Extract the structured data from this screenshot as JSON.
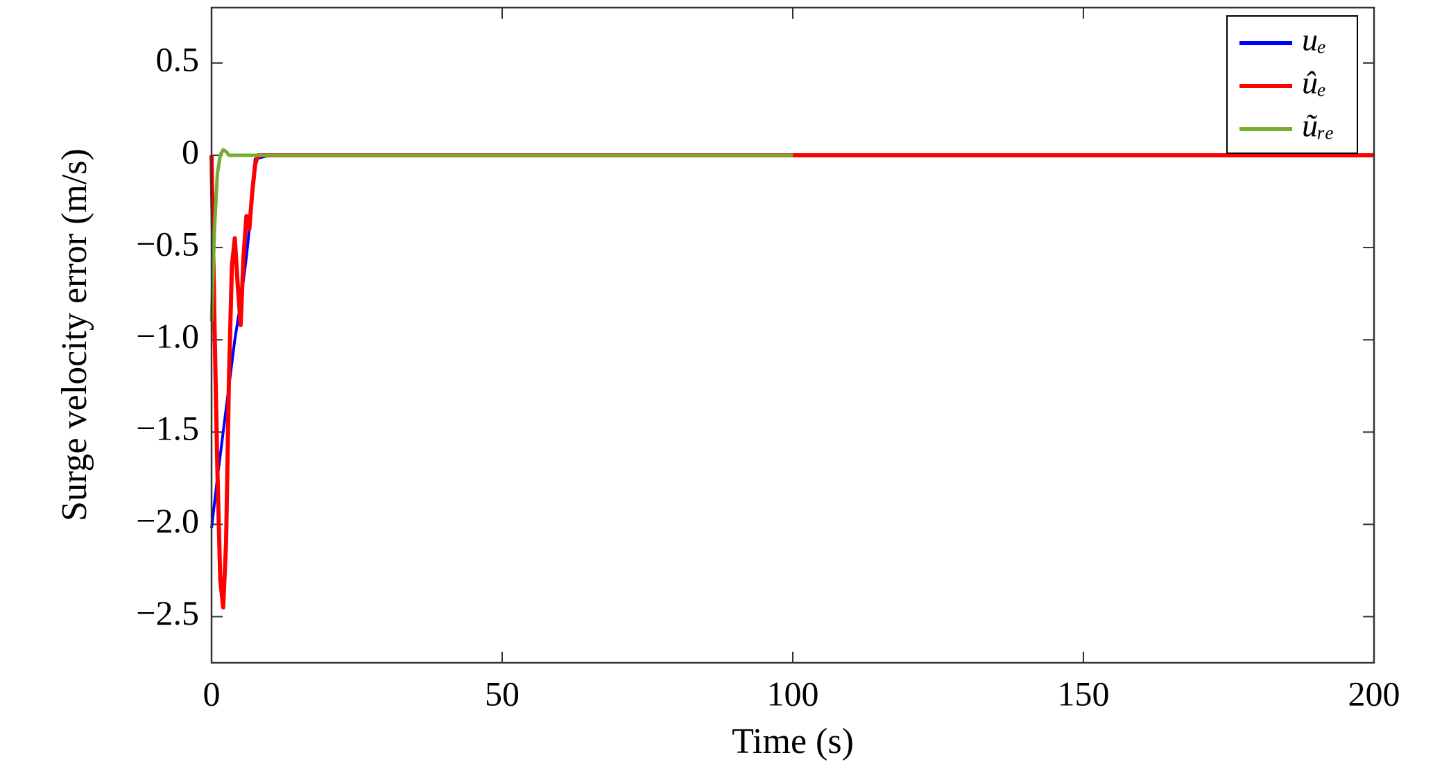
{
  "chart_data": {
    "type": "line",
    "x_label": "Time (s)",
    "y_label": "Surge velocity error (m/s)",
    "xlim": [
      0,
      200
    ],
    "ylim": [
      -2.75,
      0.8
    ],
    "xticks": [
      0,
      50,
      100,
      150,
      200
    ],
    "yticks": [
      0.5,
      0,
      {
        "value": -0.5,
        "label": "−0.5"
      },
      {
        "value": -1.0,
        "label": "−1.0"
      },
      {
        "value": -1.5,
        "label": "−1.5"
      },
      {
        "value": -2.0,
        "label": "−2.0"
      },
      {
        "value": -2.5,
        "label": "−2.5"
      }
    ],
    "legend": "upper right",
    "series": [
      {
        "name": "uₑ",
        "color": "#0000ff",
        "width": 4,
        "x": [
          0,
          1,
          2,
          3,
          4,
          5,
          6,
          6.5,
          7.5,
          10,
          20,
          50,
          100
        ],
        "values": [
          -2.02,
          -1.75,
          -1.5,
          -1.25,
          -1.0,
          -0.8,
          -0.55,
          -0.4,
          -0.02,
          0,
          0,
          0,
          0
        ]
      },
      {
        "name": "ûₑ",
        "color": "#ff0000",
        "width": 6,
        "x": [
          0,
          0.5,
          1,
          1.5,
          2,
          2.5,
          3,
          3.5,
          4,
          4.5,
          5,
          5.5,
          6,
          6.5,
          7,
          7.5,
          8,
          10,
          50,
          100,
          150,
          200
        ],
        "values": [
          0,
          -0.9,
          -1.7,
          -2.3,
          -2.45,
          -2.1,
          -1.2,
          -0.6,
          -0.45,
          -0.7,
          -0.92,
          -0.55,
          -0.33,
          -0.4,
          -0.2,
          -0.05,
          0,
          0,
          0,
          0,
          0,
          0
        ]
      },
      {
        "name": "ũᵣₑ",
        "color": "#77ac30",
        "width": 5,
        "x": [
          0,
          0.5,
          1,
          1.5,
          2,
          2.5,
          3,
          4,
          6,
          10,
          50,
          100
        ],
        "values": [
          -0.9,
          -0.4,
          -0.1,
          0,
          0.03,
          0.02,
          0,
          0,
          0,
          0,
          0,
          0
        ]
      }
    ]
  }
}
